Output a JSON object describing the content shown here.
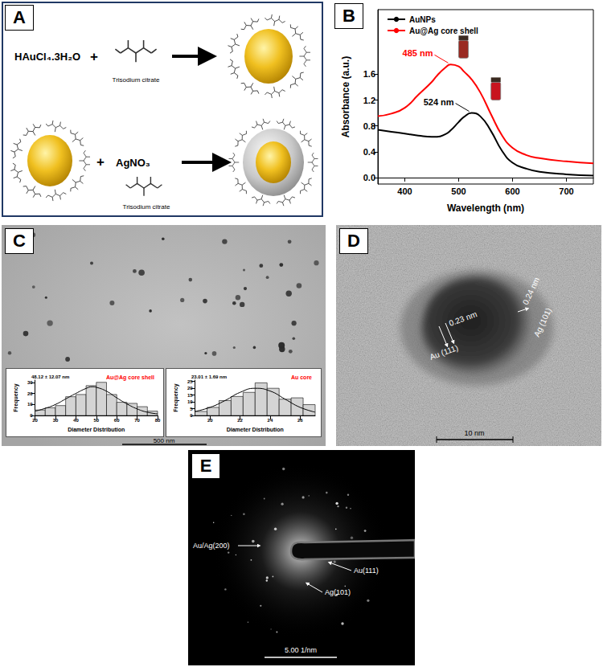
{
  "panel_labels": [
    "A",
    "B",
    "C",
    "D",
    "E"
  ],
  "scheme": {
    "rows": [
      {
        "reactant": "HAuCl₄.3H₂O",
        "plus": "+",
        "reagent": "Trisodium citrate"
      },
      {
        "plus": "+",
        "reactant": "AgNO₃",
        "reagent": "Trisodium citrate"
      }
    ]
  },
  "chart_data": [
    {
      "type": "line",
      "x_label": "Wavelength (nm)",
      "y_label": "Absorbance (a.u.)",
      "x": [
        350,
        375,
        400,
        425,
        450,
        460,
        475,
        485,
        500,
        510,
        524,
        540,
        560,
        580,
        600,
        625,
        650,
        700,
        750
      ],
      "series": [
        {
          "name": "AuNPs",
          "color": "#000000",
          "values": [
            0.74,
            0.71,
            0.68,
            0.65,
            0.63,
            0.63,
            0.67,
            0.73,
            0.86,
            0.94,
            1.0,
            0.95,
            0.72,
            0.42,
            0.23,
            0.14,
            0.09,
            0.05,
            0.03
          ]
        },
        {
          "name": "Au@Ag core shell",
          "color": "#ff0000",
          "values": [
            0.95,
            0.99,
            1.08,
            1.28,
            1.48,
            1.58,
            1.7,
            1.75,
            1.72,
            1.64,
            1.52,
            1.32,
            0.98,
            0.66,
            0.46,
            0.35,
            0.3,
            0.25,
            0.22
          ]
        }
      ],
      "xlim": [
        350,
        750
      ],
      "xticks": [
        400,
        500,
        600,
        700
      ],
      "ylim": [
        -0.1,
        2.6
      ],
      "yticks": [
        {
          "value": 0,
          "label": "0.0"
        },
        0.4,
        0.8,
        1.2,
        1.6
      ],
      "grid": false,
      "legend": "upper left",
      "annotations": [
        {
          "text": "485 nm",
          "x": 485,
          "y": 1.75,
          "color": "#ff0000"
        },
        {
          "text": "524 nm",
          "x": 524,
          "y": 1.0,
          "color": "#000000"
        }
      ]
    },
    {
      "type": "histogram",
      "title": "Au@Ag core shell",
      "subtitle": "48.12 ± 12.07 nm",
      "x_label": "Diameter Distribution",
      "y_label": "Frequency",
      "bins": [
        20,
        25,
        30,
        35,
        40,
        45,
        50,
        55,
        60,
        65,
        70,
        75,
        80
      ],
      "counts": [
        5,
        7,
        9,
        17,
        19,
        27,
        30,
        19,
        12,
        11,
        8,
        4
      ],
      "fit": {
        "x": [
          20,
          25,
          30,
          35,
          40,
          45,
          48,
          50,
          55,
          60,
          65,
          70,
          75,
          80
        ],
        "y": [
          4,
          6.5,
          10,
          15,
          20,
          24.5,
          26,
          25.5,
          22,
          16,
          10.5,
          6,
          3,
          1.5
        ]
      },
      "color": "#d4d4d4",
      "xlim": [
        20,
        80
      ],
      "xticks": [
        20,
        30,
        40,
        50,
        60,
        70,
        80
      ],
      "ylim": [
        0,
        32
      ],
      "yticks": [
        0,
        10,
        20,
        30
      ]
    },
    {
      "type": "histogram",
      "title": "Au core",
      "subtitle": "23.01 ± 1.69 nm",
      "x_label": "Diameter Distribution",
      "y_label": "Frequency",
      "bins": [
        19,
        19.8,
        20.6,
        21.4,
        22.2,
        23,
        23.8,
        24.6,
        25.4,
        26.2,
        27
      ],
      "counts": [
        3,
        6,
        11,
        14,
        17,
        24,
        20,
        12,
        13,
        8
      ],
      "fit": {
        "x": [
          19,
          20,
          21,
          22,
          23,
          24,
          25,
          26,
          27
        ],
        "y": [
          3,
          6,
          11,
          17,
          20,
          18,
          12,
          6,
          2.5
        ]
      },
      "color": "#d4d4d4",
      "xlim": [
        19,
        27
      ],
      "xticks": [
        20,
        22,
        24,
        26
      ],
      "ylim": [
        0,
        26
      ],
      "yticks": [
        0,
        5,
        10,
        15,
        20,
        25
      ]
    }
  ],
  "tem": {
    "scale_bar": "500 nm"
  },
  "hrtem": {
    "labels": [
      "0.23 nm",
      "Au (111)",
      "0.24 nm",
      "Ag (101)"
    ],
    "scale_bar": "10 nm"
  },
  "saed": {
    "labels": [
      "Au/Ag(200)",
      "Au(111)",
      "Ag(101)"
    ],
    "scale_bar": "5.00 1/nm"
  }
}
